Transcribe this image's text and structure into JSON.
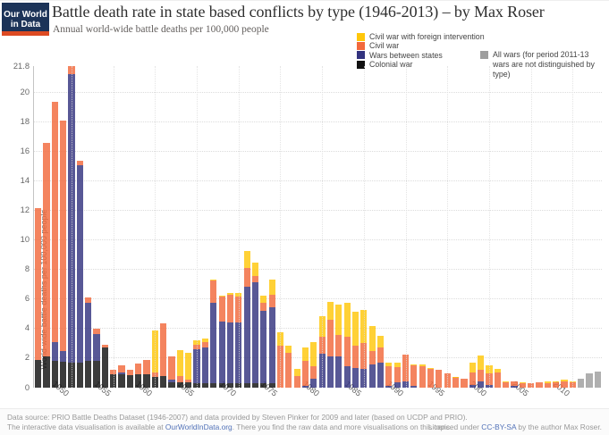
{
  "header": {
    "logo": {
      "line1": "Our World",
      "line2": "in Data"
    },
    "title": "Battle death rate in state based conflicts by type (1946-2013) – by Max Roser",
    "subtitle": "Annual world-wide battle deaths per 100,000 people"
  },
  "legend": {
    "items": [
      {
        "label": "Civil war with foreign intervention",
        "color": "#FFC70A"
      },
      {
        "label": "Civil war",
        "color": "#F2693C"
      },
      {
        "label": "Wars between states",
        "color": "#33337F"
      },
      {
        "label": "Colonial war",
        "color": "#111111"
      }
    ],
    "all_wars": {
      "line1": "All wars (for period 2011-13",
      "line2": "wars are not distinguished by type)",
      "color": "#9E9E9E"
    }
  },
  "chart_data": {
    "type": "bar",
    "stacked": true,
    "title": "Battle death rate in state based conflicts by type (1946-2013)",
    "ylabel": "World-wide battle deaths per 100,000 people",
    "xlabel": "",
    "year_start": 1946,
    "year_end": 2013,
    "ylim": [
      0,
      21.8
    ],
    "yticks": [
      0,
      2,
      4,
      6,
      8,
      10,
      12,
      14,
      16,
      18,
      20
    ],
    "ymax_label": "21.8",
    "xticks": [
      1950,
      1955,
      1960,
      1965,
      1970,
      1975,
      1980,
      1985,
      1990,
      1995,
      2000,
      2005,
      2010
    ],
    "grid": true,
    "series": [
      {
        "name": "Colonial war",
        "color": "#111111",
        "values": [
          1.85,
          2.1,
          1.8,
          1.75,
          1.7,
          1.7,
          1.8,
          1.8,
          2.75,
          0.9,
          0.9,
          0.85,
          0.9,
          0.9,
          0.7,
          0.8,
          0.35,
          0.35,
          0.35,
          0.3,
          0.3,
          0.3,
          0.3,
          0.3,
          0.3,
          0.3,
          0.3,
          0.3,
          0.3,
          0,
          0,
          0,
          0,
          0,
          0,
          0,
          0,
          0,
          0,
          0,
          0,
          0,
          0,
          0,
          0,
          0,
          0,
          0,
          0,
          0,
          0,
          0,
          0,
          0,
          0,
          0,
          0,
          0,
          0,
          0,
          0,
          0,
          0,
          0,
          0,
          0,
          0,
          0
        ]
      },
      {
        "name": "Wars between states",
        "color": "#33337F",
        "values": [
          0,
          0,
          1.3,
          0.75,
          19.55,
          13.35,
          3.95,
          1.85,
          0,
          0,
          0.15,
          0,
          0,
          0,
          0,
          0,
          0.2,
          0,
          0,
          2.3,
          2.4,
          5.45,
          4.2,
          4.15,
          4.15,
          6.55,
          6.85,
          4.9,
          5.15,
          0,
          0,
          0,
          0.1,
          0.6,
          2.3,
          2.15,
          2.15,
          1.45,
          1.35,
          1.3,
          1.6,
          1.7,
          0.15,
          0.35,
          0.45,
          0.15,
          0,
          0,
          0,
          0,
          0,
          0,
          0.2,
          0.45,
          0.2,
          0,
          0,
          0.1,
          0,
          0,
          0,
          0,
          0,
          0,
          0,
          0,
          0,
          0
        ]
      },
      {
        "name": "Civil war",
        "color": "#F2693C",
        "values": [
          10.35,
          14.5,
          16.25,
          15.6,
          0.55,
          0.35,
          0.35,
          0.35,
          0.15,
          0.3,
          0.45,
          0.35,
          0.75,
          0.95,
          0.35,
          3.55,
          1.55,
          0.45,
          0.2,
          0.3,
          0.4,
          1.5,
          1.65,
          1.85,
          1.7,
          1.25,
          0.45,
          0.55,
          0.85,
          2.85,
          2.35,
          0.8,
          1.7,
          0.85,
          1.15,
          2.45,
          1.45,
          2.0,
          1.5,
          1.7,
          0.9,
          1.05,
          1.3,
          1.05,
          1.8,
          1.35,
          1.45,
          1.25,
          1.2,
          1.0,
          0.7,
          0.6,
          0.85,
          0.75,
          0.75,
          1.05,
          0.35,
          0.35,
          0.3,
          0.3,
          0.35,
          0.3,
          0.35,
          0.45,
          0.35,
          0,
          0,
          0
        ]
      },
      {
        "name": "Civil war with foreign intervention",
        "color": "#FFC70A",
        "values": [
          0,
          0,
          0,
          0,
          0,
          0,
          0,
          0,
          0,
          0,
          0,
          0,
          0,
          0,
          2.8,
          0,
          0,
          1.75,
          1.8,
          0.3,
          0.25,
          0.1,
          0.1,
          0.1,
          0.25,
          1.15,
          0.85,
          0.5,
          1.0,
          0.9,
          0.5,
          0.45,
          0.9,
          1.65,
          1.4,
          1.2,
          2.05,
          2.3,
          2.3,
          2.25,
          1.7,
          0.75,
          0.25,
          0.3,
          0,
          0.1,
          0.15,
          0.1,
          0,
          0,
          0.05,
          0,
          0.65,
          1.0,
          0.55,
          0.2,
          0.05,
          0,
          0.05,
          0,
          0,
          0.1,
          0.1,
          0.1,
          0.1,
          0,
          0,
          0
        ]
      },
      {
        "name": "All wars (2011-13, not distinguished by type)",
        "color": "#9E9E9E",
        "values": [
          0,
          0,
          0,
          0,
          0,
          0,
          0,
          0,
          0,
          0,
          0,
          0,
          0,
          0,
          0,
          0,
          0,
          0,
          0,
          0,
          0,
          0,
          0,
          0,
          0,
          0,
          0,
          0,
          0,
          0,
          0,
          0,
          0,
          0,
          0,
          0,
          0,
          0,
          0,
          0,
          0,
          0,
          0,
          0,
          0,
          0,
          0,
          0,
          0,
          0,
          0,
          0,
          0,
          0,
          0,
          0,
          0,
          0,
          0,
          0,
          0,
          0,
          0,
          0,
          0,
          0.6,
          0.95,
          1.1
        ]
      }
    ]
  },
  "footer": {
    "line1": "Data source:  PRIO Battle Deaths Dataset (1946-2007) and data provided by Steven Pinker for 2009 and later (based on UCDP and PRIO).",
    "line2_before": "The interactive data visualisation is available at ",
    "line2_link": "OurWorldInData.org",
    "line2_after": ". There you find the raw data and more visualisations on this topic.",
    "license_before": "Licensed under ",
    "license_link": "CC-BY-SA",
    "license_after": " by the author Max Roser."
  }
}
